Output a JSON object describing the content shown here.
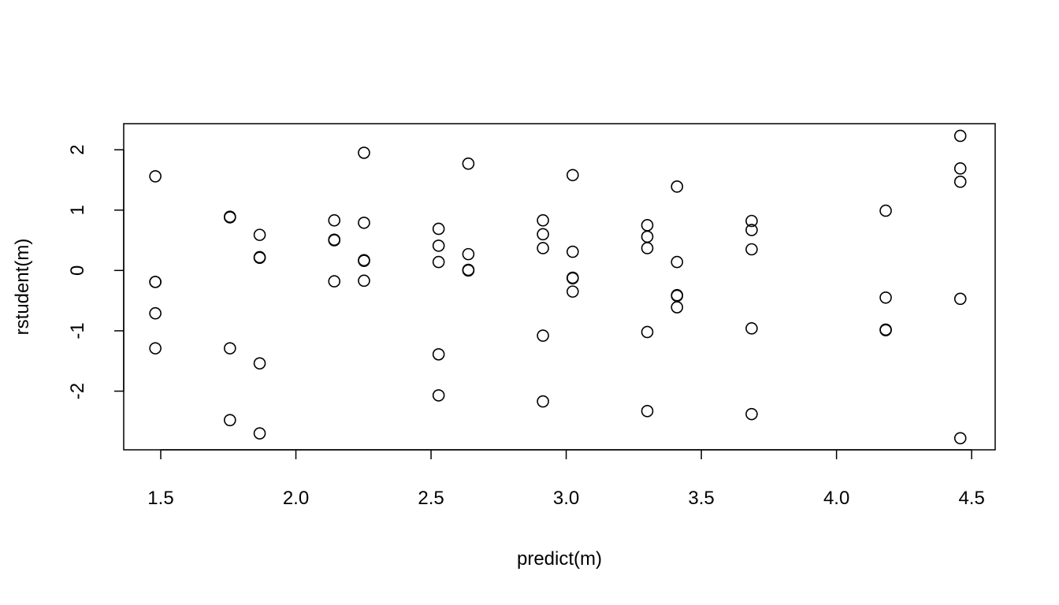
{
  "chart_data": {
    "type": "scatter",
    "title": "",
    "xlabel": "predict(m)",
    "ylabel": "rstudent(m)",
    "xlim": [
      1.363,
      4.587
    ],
    "ylim": [
      -2.972,
      2.432
    ],
    "xticks": [
      1.5,
      2.0,
      2.5,
      3.0,
      3.5,
      4.0,
      4.5
    ],
    "xtick_labels": [
      "1.5",
      "2.0",
      "2.5",
      "3.0",
      "3.5",
      "4.0",
      "4.5"
    ],
    "yticks": [
      -2,
      -1,
      0,
      1,
      2
    ],
    "ytick_labels": [
      "-2",
      "-1",
      "0",
      "1",
      "2"
    ],
    "grid": false,
    "marker": "open-circle",
    "points": [
      {
        "x": 1.48,
        "y": 1.56
      },
      {
        "x": 1.48,
        "y": -0.19
      },
      {
        "x": 1.48,
        "y": -0.19
      },
      {
        "x": 1.48,
        "y": -0.71
      },
      {
        "x": 1.48,
        "y": -1.29
      },
      {
        "x": 1.756,
        "y": 0.89
      },
      {
        "x": 1.756,
        "y": 0.88
      },
      {
        "x": 1.756,
        "y": -1.29
      },
      {
        "x": 1.756,
        "y": -2.48
      },
      {
        "x": 1.866,
        "y": 0.59
      },
      {
        "x": 1.866,
        "y": 0.22
      },
      {
        "x": 1.866,
        "y": 0.21
      },
      {
        "x": 1.866,
        "y": -1.54
      },
      {
        "x": 1.866,
        "y": -2.7
      },
      {
        "x": 2.142,
        "y": 0.83
      },
      {
        "x": 2.142,
        "y": 0.51
      },
      {
        "x": 2.142,
        "y": 0.5
      },
      {
        "x": 2.142,
        "y": -0.18
      },
      {
        "x": 2.252,
        "y": 1.95
      },
      {
        "x": 2.252,
        "y": 0.79
      },
      {
        "x": 2.252,
        "y": 0.16
      },
      {
        "x": 2.252,
        "y": 0.17
      },
      {
        "x": 2.252,
        "y": -0.17
      },
      {
        "x": 2.528,
        "y": 0.69
      },
      {
        "x": 2.528,
        "y": 0.41
      },
      {
        "x": 2.528,
        "y": 0.14
      },
      {
        "x": 2.528,
        "y": -1.39
      },
      {
        "x": 2.528,
        "y": -2.07
      },
      {
        "x": 2.638,
        "y": 1.77
      },
      {
        "x": 2.638,
        "y": 0.27
      },
      {
        "x": 2.638,
        "y": 0.01
      },
      {
        "x": 2.638,
        "y": 0.0
      },
      {
        "x": 2.914,
        "y": 0.83
      },
      {
        "x": 2.914,
        "y": 0.6
      },
      {
        "x": 2.914,
        "y": 0.37
      },
      {
        "x": 2.914,
        "y": -1.08
      },
      {
        "x": 2.914,
        "y": -2.17
      },
      {
        "x": 3.024,
        "y": 1.58
      },
      {
        "x": 3.024,
        "y": 0.31
      },
      {
        "x": 3.024,
        "y": -0.13
      },
      {
        "x": 3.024,
        "y": -0.12
      },
      {
        "x": 3.024,
        "y": -0.35
      },
      {
        "x": 3.3,
        "y": 0.75
      },
      {
        "x": 3.3,
        "y": 0.56
      },
      {
        "x": 3.3,
        "y": 0.37
      },
      {
        "x": 3.3,
        "y": -1.02
      },
      {
        "x": 3.3,
        "y": -2.33
      },
      {
        "x": 3.41,
        "y": 1.39
      },
      {
        "x": 3.41,
        "y": 0.14
      },
      {
        "x": 3.41,
        "y": -0.42
      },
      {
        "x": 3.41,
        "y": -0.41
      },
      {
        "x": 3.41,
        "y": -0.61
      },
      {
        "x": 3.686,
        "y": 0.82
      },
      {
        "x": 3.686,
        "y": 0.67
      },
      {
        "x": 3.686,
        "y": 0.35
      },
      {
        "x": 3.686,
        "y": -0.96
      },
      {
        "x": 3.686,
        "y": -2.38
      },
      {
        "x": 4.182,
        "y": 0.99
      },
      {
        "x": 4.182,
        "y": -0.45
      },
      {
        "x": 4.182,
        "y": -0.98
      },
      {
        "x": 4.182,
        "y": -0.99
      },
      {
        "x": 4.458,
        "y": 2.23
      },
      {
        "x": 4.458,
        "y": 1.69
      },
      {
        "x": 4.458,
        "y": 1.47
      },
      {
        "x": 4.458,
        "y": -0.47
      },
      {
        "x": 4.458,
        "y": -2.78
      }
    ]
  }
}
